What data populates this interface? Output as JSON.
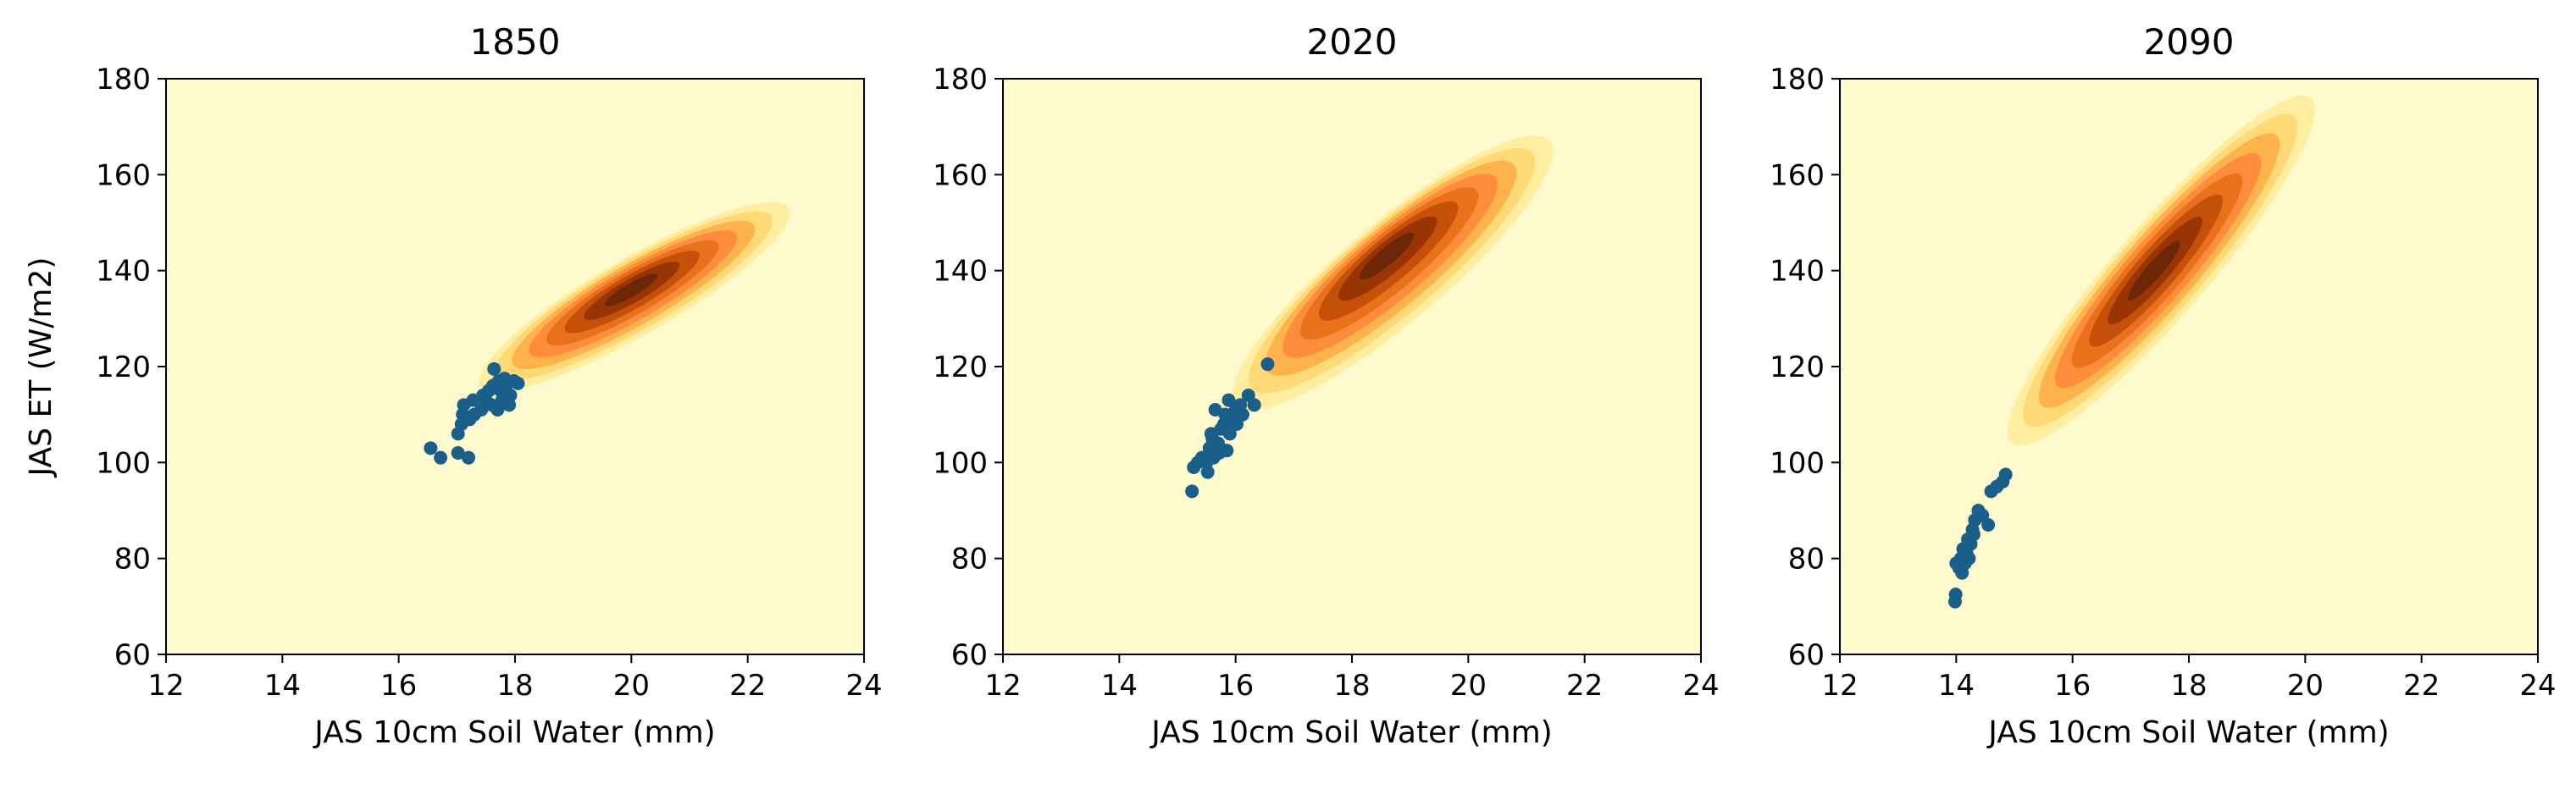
{
  "chart_data": [
    {
      "type": "scatter",
      "title": "1850",
      "xlabel": "JAS 10cm Soil Water (mm)",
      "ylabel": "JAS ET (W/m2)",
      "xlim": [
        12,
        24
      ],
      "ylim": [
        60,
        180
      ],
      "xticks": [
        "12",
        "14",
        "16",
        "18",
        "20",
        "22",
        "24"
      ],
      "yticks": [
        "60",
        "80",
        "100",
        "120",
        "140",
        "160",
        "180"
      ],
      "grid": false,
      "density": {
        "center": [
          20.0,
          136
        ],
        "start": [
          17.4,
          116
        ],
        "end": [
          22.7,
          153
        ],
        "halfwidth": 5,
        "max_lo": 128
      },
      "points": [
        [
          16.55,
          103
        ],
        [
          16.72,
          101
        ],
        [
          17.02,
          102
        ],
        [
          17.2,
          101
        ],
        [
          17.02,
          106
        ],
        [
          17.08,
          108
        ],
        [
          17.1,
          110
        ],
        [
          17.12,
          112
        ],
        [
          17.22,
          109
        ],
        [
          17.28,
          113
        ],
        [
          17.3,
          110
        ],
        [
          17.42,
          111
        ],
        [
          17.45,
          114
        ],
        [
          17.5,
          113
        ],
        [
          17.55,
          115
        ],
        [
          17.6,
          112
        ],
        [
          17.62,
          116
        ],
        [
          17.64,
          119.5
        ],
        [
          17.72,
          117
        ],
        [
          17.75,
          115
        ],
        [
          17.78,
          113
        ],
        [
          17.82,
          117.5
        ],
        [
          17.85,
          116
        ],
        [
          17.9,
          112
        ],
        [
          17.92,
          114
        ],
        [
          17.98,
          117
        ],
        [
          18.05,
          116.5
        ],
        [
          17.7,
          111
        ]
      ]
    },
    {
      "type": "scatter",
      "title": "2020",
      "xlabel": "JAS 10cm Soil Water (mm)",
      "ylabel": "",
      "xlim": [
        12,
        24
      ],
      "ylim": [
        60,
        180
      ],
      "xticks": [
        "12",
        "14",
        "16",
        "18",
        "20",
        "22",
        "24"
      ],
      "yticks": [
        "60",
        "80",
        "100",
        "120",
        "140",
        "160",
        "180"
      ],
      "grid": false,
      "density": {
        "center": [
          18.6,
          143
        ],
        "start": [
          16.0,
          112
        ],
        "end": [
          21.4,
          167
        ],
        "halfwidth": 6.5,
        "max_lo": 128
      },
      "points": [
        [
          15.25,
          94
        ],
        [
          15.28,
          99
        ],
        [
          15.35,
          100
        ],
        [
          15.42,
          101
        ],
        [
          15.5,
          100
        ],
        [
          15.52,
          98
        ],
        [
          15.55,
          103
        ],
        [
          15.58,
          106
        ],
        [
          15.62,
          101
        ],
        [
          15.65,
          111
        ],
        [
          15.7,
          104
        ],
        [
          15.72,
          102
        ],
        [
          15.75,
          107
        ],
        [
          15.8,
          108
        ],
        [
          15.82,
          110
        ],
        [
          15.85,
          102.5
        ],
        [
          15.88,
          113
        ],
        [
          15.9,
          106
        ],
        [
          15.95,
          109
        ],
        [
          16.0,
          111
        ],
        [
          16.02,
          108
        ],
        [
          16.08,
          112
        ],
        [
          16.12,
          110
        ],
        [
          16.22,
          114
        ],
        [
          16.32,
          112
        ],
        [
          16.55,
          120.5
        ],
        [
          15.6,
          105
        ]
      ]
    },
    {
      "type": "scatter",
      "title": "2090",
      "xlabel": "JAS 10cm Soil Water (mm)",
      "ylabel": "",
      "xlim": [
        12,
        24
      ],
      "ylim": [
        60,
        180
      ],
      "xticks": [
        "12",
        "14",
        "16",
        "18",
        "20",
        "22",
        "24"
      ],
      "yticks": [
        "60",
        "80",
        "100",
        "120",
        "140",
        "160",
        "180"
      ],
      "grid": false,
      "density": {
        "center": [
          17.4,
          140
        ],
        "start": [
          14.95,
          104
        ],
        "end": [
          20.1,
          176
        ],
        "halfwidth": 6,
        "max_lo": 128
      },
      "points": [
        [
          13.98,
          71
        ],
        [
          13.99,
          72.5
        ],
        [
          14.0,
          79
        ],
        [
          14.05,
          78
        ],
        [
          14.08,
          80
        ],
        [
          14.12,
          82
        ],
        [
          14.15,
          79
        ],
        [
          14.18,
          81
        ],
        [
          14.2,
          84
        ],
        [
          14.22,
          80
        ],
        [
          14.25,
          83
        ],
        [
          14.28,
          86
        ],
        [
          14.3,
          85
        ],
        [
          14.32,
          88
        ],
        [
          14.38,
          90
        ],
        [
          14.45,
          89
        ],
        [
          14.55,
          87
        ],
        [
          14.6,
          94
        ],
        [
          14.7,
          95
        ],
        [
          14.8,
          96
        ],
        [
          14.85,
          97.5
        ],
        [
          14.1,
          77
        ]
      ]
    }
  ],
  "colors": {
    "background": "#fffacd",
    "points": "#1a5f8a",
    "density_levels": [
      "#ffeda0",
      "#fed976",
      "#feb24c",
      "#fd8d3c",
      "#e8711a",
      "#c4500a",
      "#993404",
      "#6b2708"
    ]
  }
}
